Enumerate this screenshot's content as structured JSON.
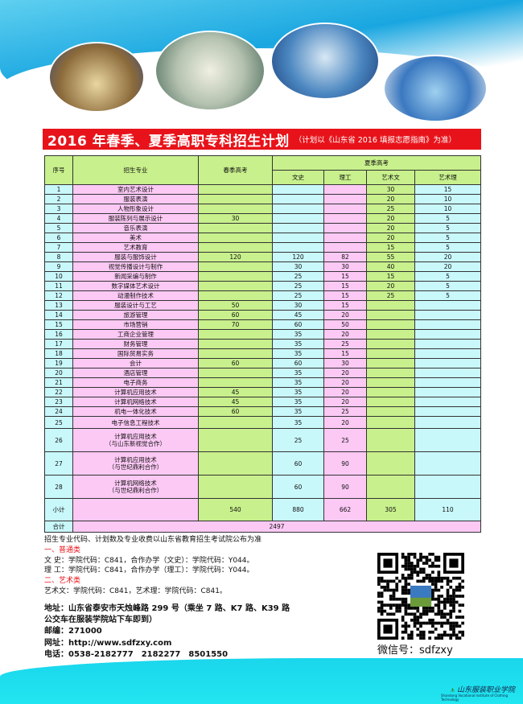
{
  "title": {
    "main": "2016 年春季、夏季高职专科招生计划",
    "sub": "（计划以《山东省 2016 填报志愿指南》为准）"
  },
  "table": {
    "headers": {
      "seq": "序号",
      "major": "招生专业",
      "spring": "春季高考",
      "summer": "夏季高考",
      "wenshi": "文史",
      "ligong": "理工",
      "yishuwen": "艺术文",
      "yishuli": "艺术理"
    },
    "rows": [
      [
        "1",
        "室内艺术设计",
        "",
        "",
        "",
        "30",
        "15"
      ],
      [
        "2",
        "服装表演",
        "",
        "",
        "",
        "20",
        "10"
      ],
      [
        "3",
        "人物形象设计",
        "",
        "",
        "",
        "25",
        "10"
      ],
      [
        "4",
        "服装陈列与展示设计",
        "30",
        "",
        "",
        "20",
        "5"
      ],
      [
        "5",
        "音乐表演",
        "",
        "",
        "",
        "20",
        "5"
      ],
      [
        "6",
        "美术",
        "",
        "",
        "",
        "20",
        "5"
      ],
      [
        "7",
        "艺术教育",
        "",
        "",
        "",
        "15",
        "5"
      ],
      [
        "8",
        "服装与服饰设计",
        "120",
        "120",
        "82",
        "55",
        "20"
      ],
      [
        "9",
        "视觉传播设计与制作",
        "",
        "30",
        "30",
        "40",
        "20"
      ],
      [
        "10",
        "新闻采编与制作",
        "",
        "25",
        "15",
        "15",
        "5"
      ],
      [
        "11",
        "数字媒体艺术设计",
        "",
        "25",
        "15",
        "20",
        "5"
      ],
      [
        "12",
        "动漫制作技术",
        "",
        "25",
        "15",
        "25",
        "5"
      ],
      [
        "13",
        "服装设计与工艺",
        "50",
        "30",
        "15",
        "",
        ""
      ],
      [
        "14",
        "旅游管理",
        "60",
        "45",
        "20",
        "",
        ""
      ],
      [
        "15",
        "市场营销",
        "70",
        "60",
        "50",
        "",
        ""
      ],
      [
        "16",
        "工商企业管理",
        "",
        "35",
        "20",
        "",
        ""
      ],
      [
        "17",
        "财务管理",
        "",
        "35",
        "25",
        "",
        ""
      ],
      [
        "18",
        "国际贸易实务",
        "",
        "35",
        "15",
        "",
        ""
      ],
      [
        "19",
        "会计",
        "60",
        "60",
        "30",
        "",
        ""
      ],
      [
        "20",
        "酒店管理",
        "",
        "35",
        "20",
        "",
        ""
      ],
      [
        "21",
        "电子商务",
        "",
        "35",
        "20",
        "",
        ""
      ],
      [
        "22",
        "计算机应用技术",
        "45",
        "35",
        "20",
        "",
        ""
      ],
      [
        "23",
        "计算机网络技术",
        "45",
        "35",
        "20",
        "",
        ""
      ],
      [
        "24",
        "机电一体化技术",
        "60",
        "35",
        "25",
        "",
        ""
      ],
      [
        "25",
        "电子信息工程技术",
        "",
        "35",
        "20",
        "",
        ""
      ],
      [
        "26",
        "计算机应用技术\n（与山东新视觉合作）",
        "",
        "25",
        "25",
        "",
        ""
      ],
      [
        "27",
        "计算机应用技术\n（与世纪鼎利合作）",
        "",
        "60",
        "90",
        "",
        ""
      ],
      [
        "28",
        "计算机网络技术\n（与世纪鼎利合作）",
        "",
        "60",
        "90",
        "",
        ""
      ]
    ],
    "subtotal": [
      "小计",
      "",
      "540",
      "880",
      "662",
      "305",
      "110"
    ],
    "total": {
      "label": "合计",
      "value": "2497"
    }
  },
  "info": {
    "note": "招生专业代码、计划数及专业收费以山东省教育招生考试院公布为准",
    "cat1": "一、普通类",
    "wenshi": "文 史：学院代码：C841，合作办学（文史）：学院代码：Y044。",
    "ligong": "理 工：学院代码：C841，合作办学（理工）：学院代码：Y044。",
    "cat2": "二、艺术类",
    "art": "艺术文：学院代码：C841，艺术理：学院代码：C841。"
  },
  "contact": {
    "address1": "地址：山东省泰安市天烛峰路 299 号（乘坐 7 路、K7 路、K39 路",
    "address2": "公交车在服装学院站下车即到）",
    "postcode": "邮编：271000",
    "website": "网址：http://www.sdfzxy.com",
    "phone": "电话：0538-2182777　2182277　8501550"
  },
  "wechat": "微信号：sdfzxy",
  "logo": {
    "cn": "山东服装职业学院",
    "en": "Shandong Vocational Institute of Clothing Technology"
  },
  "colors": {
    "title_bg": "#e8131a",
    "header": "#c8f08c",
    "cyan": "#c9f8fb",
    "pink": "#fcc9f5",
    "green": "#c8f08c"
  }
}
